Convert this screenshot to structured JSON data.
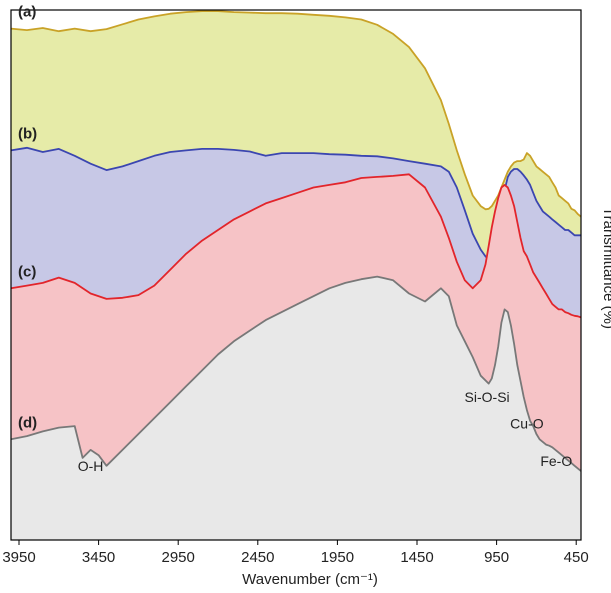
{
  "chart_data": {
    "type": "area",
    "xlabel": "Wavenumber (cm⁻¹)",
    "ylabel": "Transmittance (%)",
    "x_reversed": true,
    "xlim": [
      4000,
      420
    ],
    "ylim": [
      0,
      100
    ],
    "y_tick_labels_shown": false,
    "grid": false,
    "x_ticks": [
      3950,
      3450,
      2950,
      2450,
      1950,
      1450,
      950,
      450
    ],
    "colors": {
      "a": {
        "line": "#c9a227",
        "fill": "#e6eba8"
      },
      "b": {
        "line": "#3b46b0",
        "fill": "#c7c8e6"
      },
      "c": {
        "line": "#e2252b",
        "fill": "#f6c3c6"
      },
      "d": {
        "line": "#787878",
        "fill": "#e8e8e8"
      }
    },
    "series": [
      {
        "label": "(a)",
        "x": [
          4000,
          3900,
          3800,
          3700,
          3600,
          3500,
          3400,
          3300,
          3200,
          3100,
          3000,
          2900,
          2800,
          2700,
          2600,
          2500,
          2400,
          2300,
          2200,
          2100,
          2000,
          1900,
          1800,
          1700,
          1600,
          1500,
          1400,
          1300,
          1250,
          1200,
          1150,
          1100,
          1050,
          1020,
          1000,
          980,
          960,
          940,
          920,
          900,
          880,
          860,
          840,
          820,
          800,
          780,
          760,
          740,
          720,
          700,
          680,
          660,
          640,
          620,
          600,
          580,
          560,
          540,
          520,
          500,
          480,
          460,
          440,
          420
        ],
        "y": [
          96.5,
          96.2,
          96.6,
          96,
          96.5,
          96,
          96.4,
          97.3,
          98.2,
          98.8,
          99.3,
          99.6,
          99.8,
          99.8,
          99.6,
          99.5,
          99.4,
          99.4,
          99.3,
          99.1,
          98.9,
          98.6,
          98.2,
          97.2,
          95.5,
          93,
          89,
          83,
          78.5,
          73.5,
          69,
          65,
          63,
          62.4,
          62.5,
          63,
          64,
          65,
          66.5,
          68,
          69.5,
          70.5,
          71.2,
          71.5,
          71.5,
          71.8,
          73,
          72.5,
          71.5,
          70.5,
          70,
          69.5,
          69,
          68.5,
          67.5,
          66.5,
          65,
          64.5,
          64,
          63.5,
          62.5,
          62.2,
          61.5,
          61
        ]
      },
      {
        "label": "(b)",
        "x": [
          4000,
          3900,
          3800,
          3700,
          3600,
          3500,
          3400,
          3300,
          3200,
          3100,
          3000,
          2900,
          2800,
          2700,
          2600,
          2500,
          2400,
          2300,
          2200,
          2100,
          2000,
          1900,
          1800,
          1700,
          1600,
          1500,
          1400,
          1300,
          1250,
          1200,
          1150,
          1100,
          1050,
          1020,
          1000,
          980,
          960,
          940,
          920,
          900,
          880,
          860,
          840,
          820,
          800,
          780,
          760,
          740,
          720,
          700,
          680,
          660,
          640,
          620,
          600,
          580,
          560,
          540,
          520,
          500,
          480,
          460,
          440,
          420
        ],
        "y": [
          73.5,
          74,
          73.2,
          73.8,
          72.5,
          71,
          69.8,
          70.5,
          71.5,
          72.5,
          73.2,
          73.5,
          73.8,
          73.8,
          73.6,
          73.3,
          72.5,
          73,
          73,
          73,
          72.8,
          72.7,
          72.5,
          72.4,
          72,
          71.5,
          71,
          70.5,
          69.5,
          66.5,
          62.2,
          57.8,
          54.8,
          53.5,
          53,
          53.5,
          55,
          58,
          62,
          66,
          68.5,
          69.5,
          70,
          70,
          69.5,
          68.8,
          68,
          67,
          65.5,
          64,
          63,
          62,
          61.5,
          61,
          60.5,
          60,
          59.5,
          59,
          58.5,
          58.5,
          58,
          57.5,
          57.5,
          57.5
        ]
      },
      {
        "label": "(c)",
        "x": [
          4000,
          3900,
          3800,
          3700,
          3600,
          3500,
          3400,
          3300,
          3200,
          3100,
          3000,
          2900,
          2800,
          2700,
          2600,
          2500,
          2400,
          2300,
          2200,
          2100,
          2000,
          1900,
          1800,
          1700,
          1600,
          1500,
          1400,
          1300,
          1250,
          1200,
          1150,
          1100,
          1050,
          1020,
          1000,
          980,
          960,
          940,
          920,
          900,
          880,
          860,
          840,
          820,
          800,
          780,
          760,
          740,
          720,
          700,
          680,
          660,
          640,
          620,
          600,
          580,
          560,
          540,
          520,
          500,
          480,
          460,
          440,
          420
        ],
        "y": [
          47.5,
          48,
          48.5,
          49.5,
          48.5,
          46.5,
          45.5,
          45.7,
          46.2,
          48,
          51,
          54,
          56.5,
          58.5,
          60.5,
          62,
          63.5,
          64.5,
          65.5,
          66.5,
          67,
          67.5,
          68.3,
          68.5,
          68.7,
          69,
          66.5,
          61,
          57,
          52.5,
          49,
          47.5,
          49,
          52,
          55.5,
          59,
          62,
          64.5,
          66.5,
          67,
          66.5,
          65,
          63,
          60,
          57,
          54.5,
          53.5,
          52,
          50.5,
          49.5,
          48.5,
          47.5,
          46.5,
          45.5,
          44.5,
          44,
          43.5,
          43.5,
          43,
          42.8,
          42.5,
          42.3,
          42.2,
          42
        ]
      },
      {
        "label": "(d)",
        "x": [
          4000,
          3900,
          3800,
          3700,
          3600,
          3550,
          3500,
          3450,
          3400,
          3300,
          3200,
          3100,
          3000,
          2900,
          2800,
          2700,
          2600,
          2500,
          2400,
          2300,
          2200,
          2100,
          2000,
          1900,
          1800,
          1700,
          1600,
          1500,
          1400,
          1300,
          1250,
          1200,
          1150,
          1100,
          1050,
          1000,
          980,
          960,
          940,
          920,
          900,
          880,
          860,
          840,
          820,
          800,
          780,
          760,
          740,
          720,
          700,
          680,
          660,
          640,
          620,
          600,
          580,
          560,
          540,
          520,
          500,
          480,
          460,
          440,
          420
        ],
        "y": [
          19,
          19.6,
          20.5,
          21.2,
          21.5,
          15.5,
          17,
          16,
          14,
          17,
          20,
          23,
          26,
          29,
          32,
          35,
          37.5,
          39.5,
          41.5,
          43,
          44.5,
          46,
          47.5,
          48.5,
          49.2,
          49.7,
          49,
          46.5,
          45,
          47.5,
          46,
          40.5,
          37.5,
          34.5,
          31,
          29.5,
          30.5,
          33,
          36.5,
          41,
          43.5,
          43,
          40.5,
          37,
          33,
          30,
          27,
          24.5,
          22.5,
          21.5,
          20,
          19,
          18.5,
          18,
          17.8,
          17.5,
          17,
          16.5,
          16,
          15.5,
          15,
          14.5,
          14,
          13.5,
          13
        ]
      }
    ],
    "annotations": [
      {
        "text": "O-H",
        "x": 3500,
        "y": 13
      },
      {
        "text": "Si-O-Si",
        "x": 1010,
        "y": 26
      },
      {
        "text": "Cu-O",
        "x": 760,
        "y": 21
      },
      {
        "text": "Fe-O",
        "x": 575,
        "y": 14
      }
    ]
  }
}
